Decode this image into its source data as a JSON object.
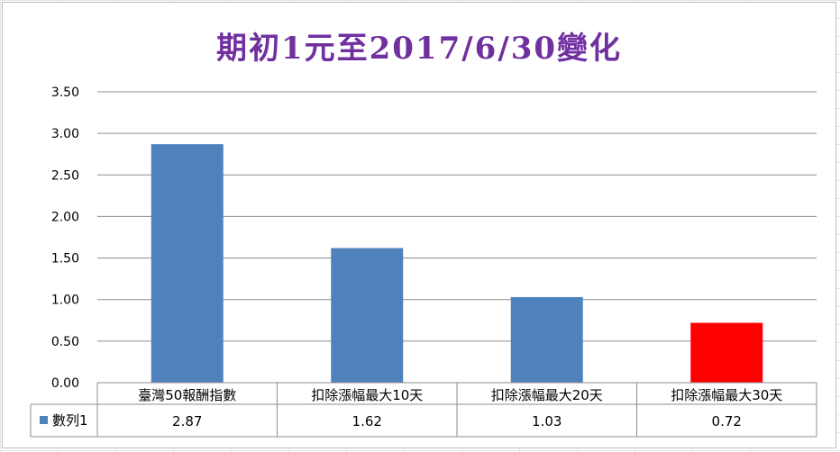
{
  "chart_data": {
    "type": "bar",
    "title": "期初1元至2017/6/30變化",
    "categories": [
      "臺灣50報酬指數",
      "扣除漲幅最大10天",
      "扣除漲幅最大20天",
      "扣除漲幅最大30天"
    ],
    "series": [
      {
        "name": "數列1",
        "values": [
          2.87,
          1.62,
          1.03,
          0.72
        ],
        "value_labels": [
          "2.87",
          "1.62",
          "1.03",
          "0.72"
        ],
        "color": "#4f81bd",
        "highlight_color": "#ff0000",
        "highlight_index": 3
      }
    ],
    "y_ticks": [
      "0.00",
      "0.50",
      "1.00",
      "1.50",
      "2.00",
      "2.50",
      "3.00",
      "3.50"
    ],
    "ylim": [
      0,
      3.5
    ],
    "grid": true,
    "data_table": true,
    "legend": "data-table"
  }
}
